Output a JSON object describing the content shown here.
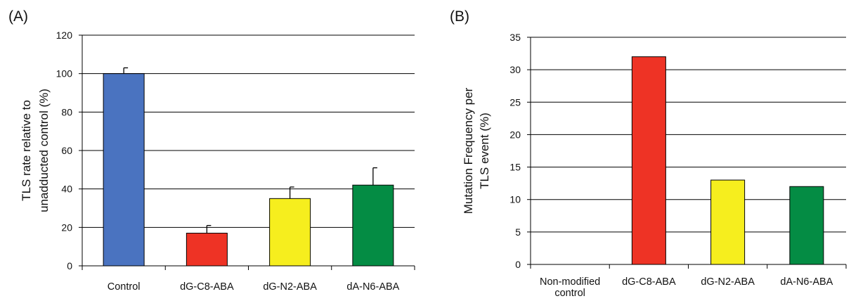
{
  "chart_data": [
    {
      "panel": "(A)",
      "type": "bar",
      "ylabel_lines": [
        "TLS rate relative to",
        "unadducted control (%)"
      ],
      "categories": [
        "Control",
        "dG-C8-ABA",
        "dG-N2-ABA",
        "dA-N6-ABA"
      ],
      "values": [
        100,
        17,
        35,
        42
      ],
      "errors": [
        3,
        4,
        6,
        9
      ],
      "colors": [
        "#4a73c0",
        "#ee3325",
        "#f6ee1e",
        "#048c44"
      ],
      "ylim": [
        0,
        120
      ],
      "yticks": [
        0,
        20,
        40,
        60,
        80,
        100,
        120
      ],
      "grid": true
    },
    {
      "panel": "(B)",
      "type": "bar",
      "ylabel_lines": [
        "Mutation Frequency per",
        "TLS event (%)"
      ],
      "categories": [
        "Non-modified control",
        "dG-C8-ABA",
        "dG-N2-ABA",
        "dA-N6-ABA"
      ],
      "category_lines": [
        [
          "Non-modified",
          "control"
        ],
        [
          "dG-C8-ABA"
        ],
        [
          "dG-N2-ABA"
        ],
        [
          "dA-N6-ABA"
        ]
      ],
      "values": [
        0,
        32,
        13,
        12
      ],
      "colors": [
        "#ffffff",
        "#ee3325",
        "#f6ee1e",
        "#048c44"
      ],
      "ylim": [
        0,
        35
      ],
      "yticks": [
        0,
        5,
        10,
        15,
        20,
        25,
        30,
        35
      ],
      "grid": true
    }
  ]
}
